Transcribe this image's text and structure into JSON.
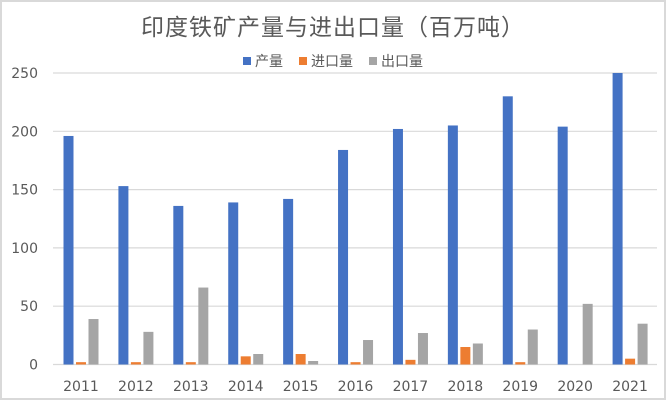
{
  "chart_data": {
    "type": "bar",
    "title": "印度铁矿产量与进出口量（百万吨）",
    "xlabel": "",
    "ylabel": "",
    "ylim": [
      0,
      250
    ],
    "yticks": [
      0,
      50,
      100,
      150,
      200,
      250
    ],
    "grid": true,
    "legend_position": "top",
    "categories": [
      "2011",
      "2012",
      "2013",
      "2014",
      "2015",
      "2016",
      "2017",
      "2018",
      "2019",
      "2020",
      "2021"
    ],
    "series": [
      {
        "name": "产量",
        "color": "#4472c4",
        "values": [
          196,
          153,
          136,
          139,
          142,
          184,
          202,
          205,
          230,
          204,
          250
        ]
      },
      {
        "name": "进口量",
        "color": "#ed7d31",
        "values": [
          2,
          2,
          2,
          7,
          9,
          2,
          4,
          15,
          2,
          0,
          5
        ]
      },
      {
        "name": "出口量",
        "color": "#a5a5a5",
        "values": [
          39,
          28,
          66,
          9,
          3,
          21,
          27,
          18,
          30,
          52,
          35
        ]
      }
    ]
  },
  "colors": {
    "gridline": "#d9d9d9",
    "text": "#595959",
    "border": "#d9d9d9"
  }
}
